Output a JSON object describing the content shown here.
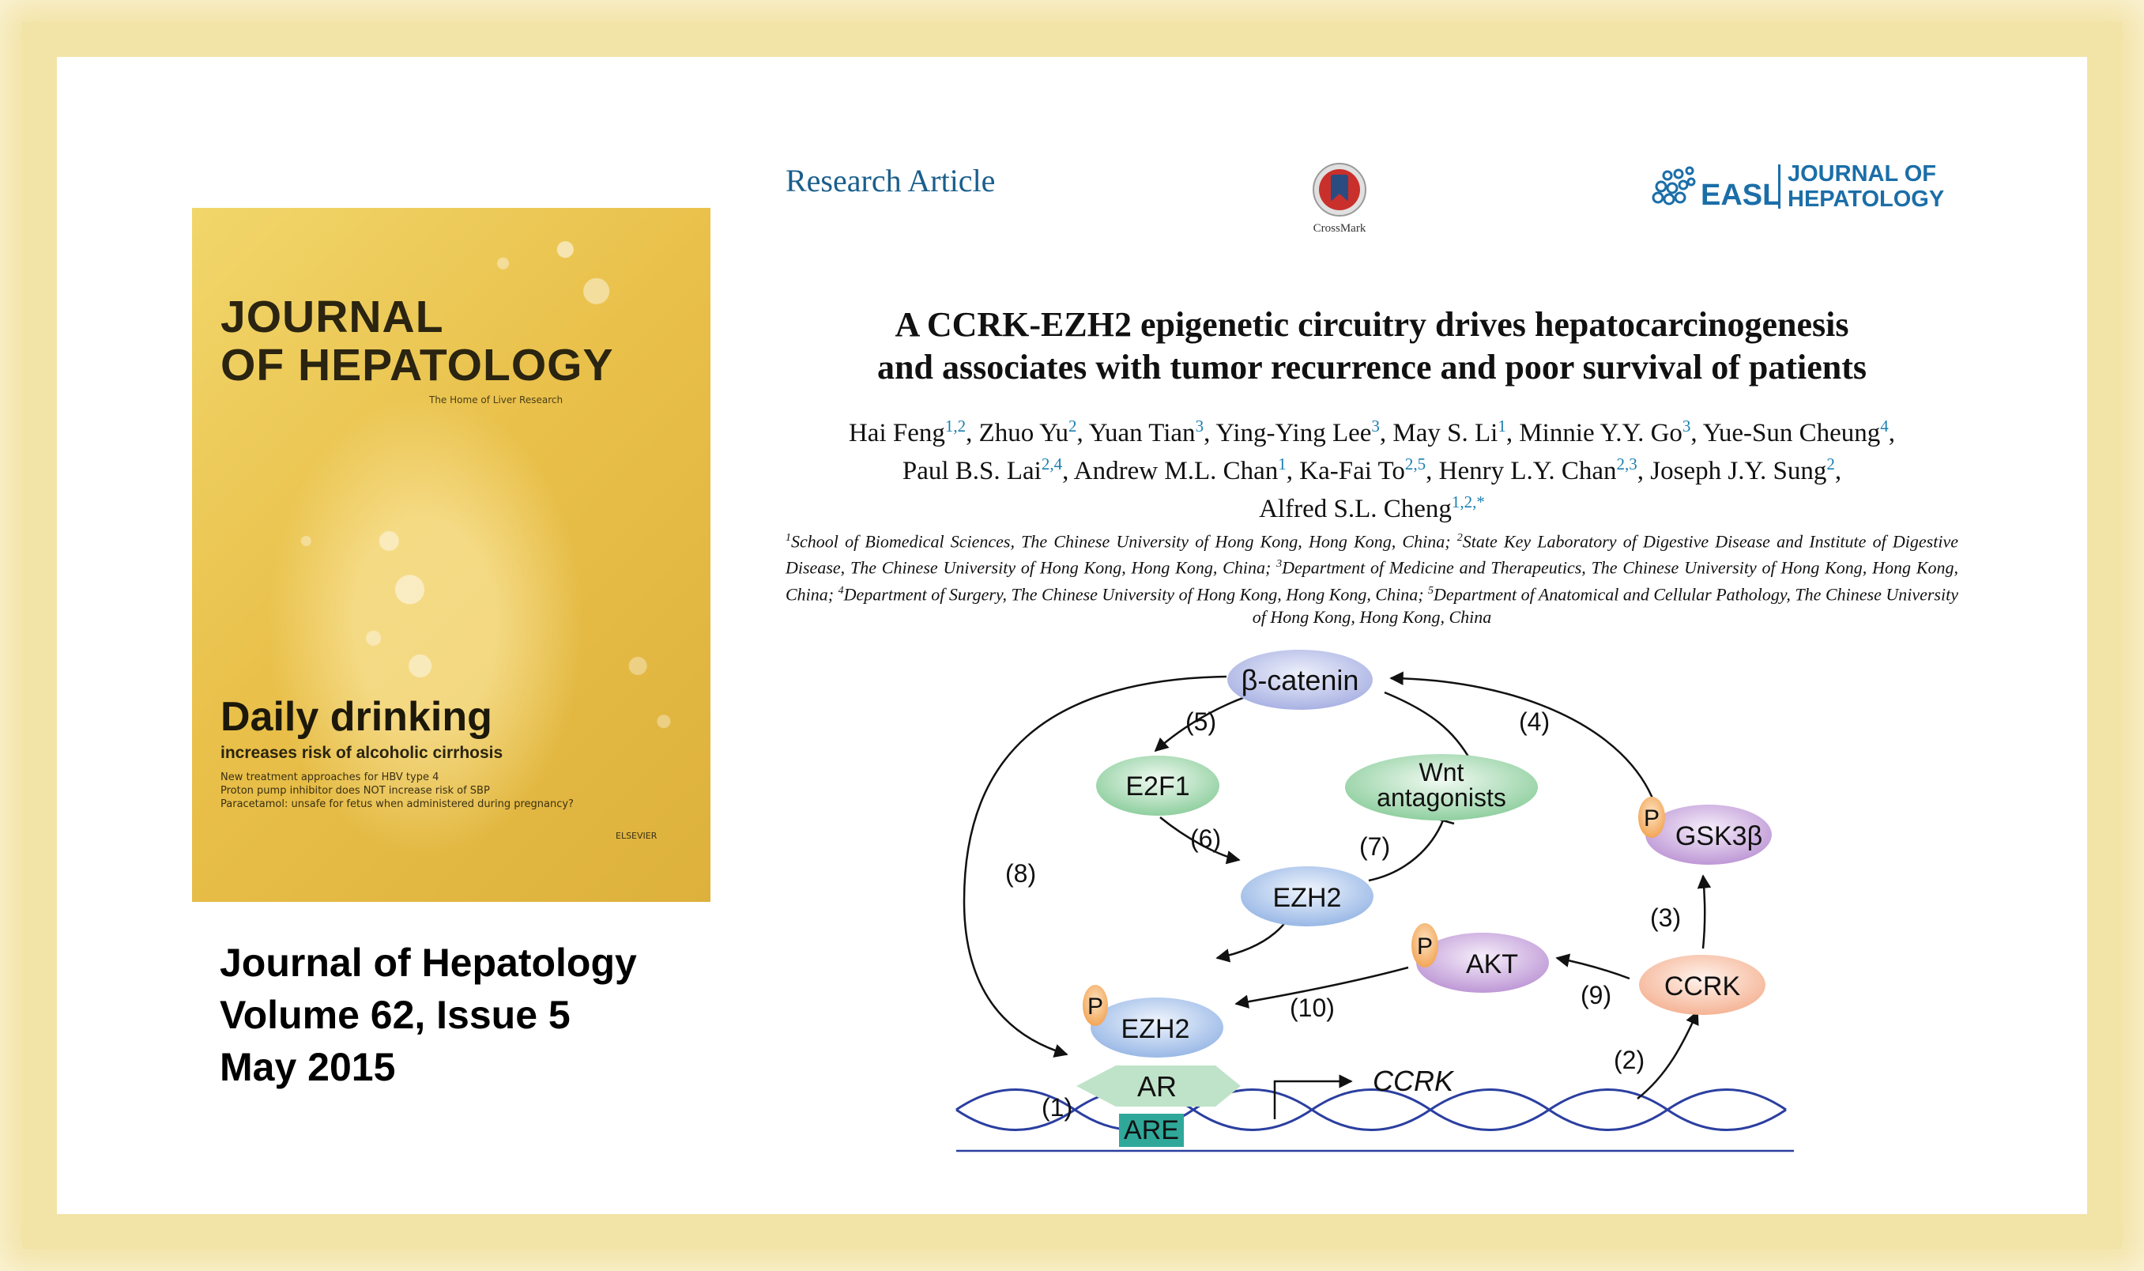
{
  "cover": {
    "masthead_line1": "JOURNAL",
    "masthead_line2": "OF HEPATOLOGY",
    "tagline": "The Home of Liver Research",
    "headline": "Daily drinking",
    "deck": "increases risk of alcoholic cirrhosis",
    "lines": [
      "New treatment approaches for HBV type 4",
      "Proton pump inhibitor does NOT increase risk of SBP",
      "Paracetamol: unsafe for fetus when administered during pregnancy?"
    ],
    "publisher": "ELSEVIER"
  },
  "caption": {
    "journal": "Journal of Hepatology",
    "volume": "Volume 62, Issue 5",
    "date": "May 2015"
  },
  "header": {
    "article_type": "Research Article",
    "crossmark_label": "CrossMark",
    "easl": "EASL",
    "journal_line1": "JOURNAL OF",
    "journal_line2": "HEPATOLOGY"
  },
  "article": {
    "title_line1": "A CCRK-EZH2 epigenetic circuitry drives hepatocarcinogenesis",
    "title_line2": "and associates with tumor recurrence and poor survival of patients",
    "authors": [
      {
        "name": "Hai Feng",
        "sup": "1,2",
        "sep": ", "
      },
      {
        "name": "Zhuo Yu",
        "sup": "2",
        "sep": ", "
      },
      {
        "name": "Yuan Tian",
        "sup": "3",
        "sep": ", "
      },
      {
        "name": "Ying-Ying Lee",
        "sup": "3",
        "sep": ", "
      },
      {
        "name": "May S. Li",
        "sup": "1",
        "sep": ", "
      },
      {
        "name": "Minnie Y.Y. Go",
        "sup": "3",
        "sep": ", "
      },
      {
        "name": "Yue-Sun Cheung",
        "sup": "4",
        "sep": ","
      },
      {
        "name": "Paul B.S. Lai",
        "sup": "2,4",
        "sep": ", "
      },
      {
        "name": "Andrew M.L. Chan",
        "sup": "1",
        "sep": ", "
      },
      {
        "name": "Ka-Fai To",
        "sup": "2,5",
        "sep": ", "
      },
      {
        "name": "Henry L.Y. Chan",
        "sup": "2,3",
        "sep": ", "
      },
      {
        "name": "Joseph J.Y. Sung",
        "sup": "2",
        "sep": ","
      },
      {
        "name": "Alfred S.L. Cheng",
        "sup": "1,2,*",
        "sep": ""
      }
    ],
    "affiliations": [
      {
        "sup": "1",
        "text": "School of Biomedical Sciences, The Chinese University of Hong Kong, Hong Kong, China; "
      },
      {
        "sup": "2",
        "text": "State Key Laboratory of Digestive Disease and Institute of Digestive Disease, The Chinese University of Hong Kong, Hong Kong, China; "
      },
      {
        "sup": "3",
        "text": "Department of Medicine and Therapeutics, The Chinese University of Hong Kong, Hong Kong, China; "
      },
      {
        "sup": "4",
        "text": "Department of Surgery, The Chinese University of Hong Kong, Hong Kong, China; "
      },
      {
        "sup": "5",
        "text": "Department of Anatomical and Cellular Pathology, The Chinese University of Hong Kong, Hong Kong, China"
      }
    ]
  },
  "diagram": {
    "nodes": {
      "beta_catenin": "β-catenin",
      "e2f1": "E2F1",
      "wnt_line1": "Wnt",
      "wnt_line2": "antagonists",
      "ezh2_mid": "EZH2",
      "gsk3b": "GSK3β",
      "akt": "AKT",
      "ccrk": "CCRK",
      "ezh2_bottom": "EZH2",
      "ar": "AR",
      "are": "ARE",
      "ccrk_gene": "CCRK",
      "phospho": "P"
    },
    "steps": [
      "(1)",
      "(2)",
      "(3)",
      "(4)",
      "(5)",
      "(6)",
      "(7)",
      "(8)",
      "(9)",
      "(10)"
    ],
    "colors": {
      "beta_catenin": "#b7bfe8",
      "green": "#9fd5ad",
      "blue": "#a9c4ea",
      "purple": "#c9a7dc",
      "peach": "#f7c2a6",
      "phospho": "#f5b46c",
      "ar": "#bfe3c8",
      "are": "#2fa89a",
      "dna": "#2b3fa0"
    }
  }
}
